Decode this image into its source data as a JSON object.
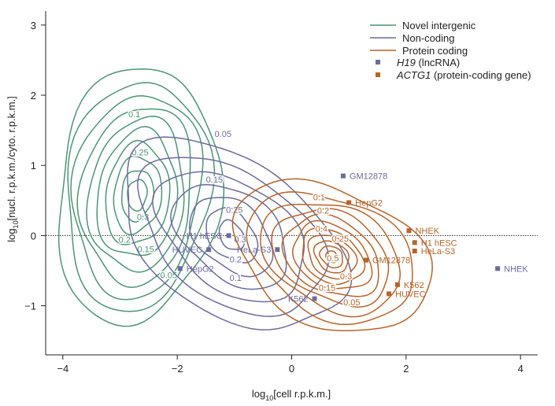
{
  "chart_data": {
    "type": "contour",
    "xlabel": {
      "prefix": "log",
      "sub": "10",
      "rest": "[cell r.p.k.m.]"
    },
    "ylabel": {
      "prefix": "log",
      "sub": "10",
      "rest": "[nucl. r.p.k.m./cyto. r.p.k.m.]"
    },
    "xlim": [
      -4.3,
      4.3
    ],
    "ylim": [
      -1.7,
      3.2
    ],
    "xticks": [
      -4,
      -2,
      0,
      2,
      4
    ],
    "xtick_labels": [
      "−4",
      "−2",
      "0",
      "2",
      "4"
    ],
    "yticks": [
      -1,
      0,
      1,
      2,
      3
    ],
    "ytick_labels": [
      "−1",
      "0",
      "1",
      "2",
      "3"
    ],
    "reference_line_y": 0,
    "colors": {
      "novel": "#4d9474",
      "noncoding": "#6b6b9c",
      "protein": "#b5642c"
    },
    "legend": {
      "position": "top-right",
      "lines": [
        {
          "label": "Novel intergenic",
          "color": "#4d9474"
        },
        {
          "label": "Non-coding",
          "color": "#6b6b9c"
        },
        {
          "label": "Protein coding",
          "color": "#b5642c"
        }
      ],
      "markers": [
        {
          "italic": "H19",
          "rest": " (lncRNA)",
          "color": "#6b6b9c"
        },
        {
          "italic": "ACTG1",
          "rest": " (protein-coding gene)",
          "color": "#b5642c"
        }
      ]
    },
    "series": [
      {
        "name": "Novel intergenic",
        "color": "#4d9474",
        "center": [
          -2.7,
          0.58
        ],
        "rx": [
          0.17,
          0.28,
          0.42,
          0.56,
          0.7,
          0.84,
          0.98,
          1.12,
          1.26,
          1.42
        ],
        "ry": [
          0.22,
          0.36,
          0.54,
          0.72,
          0.9,
          1.08,
          1.26,
          1.44,
          1.62,
          1.82
        ],
        "skew": 0.15,
        "labels": [
          {
            "text": "0.1",
            "x": -2.75,
            "y": 1.73
          },
          {
            "text": "0.25",
            "x": -2.65,
            "y": 1.19
          },
          {
            "text": "0.3",
            "x": -2.6,
            "y": 0.27
          },
          {
            "text": "0.2",
            "x": -2.92,
            "y": -0.06
          },
          {
            "text": "0.15",
            "x": -2.55,
            "y": -0.19
          },
          {
            "text": "0.05",
            "x": -2.15,
            "y": -0.56
          }
        ]
      },
      {
        "name": "Non-coding",
        "color": "#6b6b9c",
        "center": [
          -1.05,
          0.0
        ],
        "rx": [
          0.22,
          0.45,
          0.72,
          1.0,
          1.3,
          1.62,
          1.95
        ],
        "ry": [
          0.2,
          0.36,
          0.52,
          0.68,
          0.84,
          1.02,
          1.22
        ],
        "skew": -0.3,
        "labels": [
          {
            "text": "0.05",
            "x": -1.2,
            "y": 1.45
          },
          {
            "text": "0.15",
            "x": -1.35,
            "y": 0.8
          },
          {
            "text": "0.25",
            "x": -1.0,
            "y": 0.37
          },
          {
            "text": "0.3",
            "x": -0.9,
            "y": -0.05
          },
          {
            "text": "0.2",
            "x": -0.98,
            "y": -0.34
          },
          {
            "text": "0.1",
            "x": -0.98,
            "y": -0.6
          }
        ]
      },
      {
        "name": "Protein coding",
        "color": "#b5642c",
        "center": [
          0.7,
          -0.3
        ],
        "rx": [
          0.1,
          0.2,
          0.3,
          0.42,
          0.54,
          0.68,
          0.84,
          1.02,
          1.22,
          1.45,
          1.72
        ],
        "ry": [
          0.08,
          0.15,
          0.22,
          0.3,
          0.38,
          0.46,
          0.55,
          0.65,
          0.76,
          0.88,
          1.02
        ],
        "skew": -0.2,
        "labels": [
          {
            "text": "0.1",
            "x": 0.48,
            "y": 0.55
          },
          {
            "text": "0.2",
            "x": 0.55,
            "y": 0.36
          },
          {
            "text": "0.4",
            "x": 0.52,
            "y": 0.1
          },
          {
            "text": "0.25",
            "x": 0.85,
            "y": -0.04
          },
          {
            "text": "0.5",
            "x": 0.72,
            "y": -0.32
          },
          {
            "text": "0.3",
            "x": 0.95,
            "y": -0.58
          },
          {
            "text": "0.15",
            "x": 0.62,
            "y": -0.74
          },
          {
            "text": "0.05",
            "x": 1.05,
            "y": -0.95
          }
        ]
      }
    ],
    "points": [
      {
        "series": "H19",
        "label": "GM12878",
        "x": 0.9,
        "y": 0.85,
        "color": "#6b6b9c",
        "anchor": "start"
      },
      {
        "series": "H19",
        "label": "H1 hESC",
        "x": -1.1,
        "y": 0.0,
        "color": "#6b6b9c",
        "anchor": "end"
      },
      {
        "series": "H19",
        "label": "HUVEC",
        "x": -1.45,
        "y": -0.2,
        "color": "#6b6b9c",
        "anchor": "end"
      },
      {
        "series": "H19",
        "label": "HeLa-S3",
        "x": -0.25,
        "y": -0.2,
        "color": "#6b6b9c",
        "anchor": "end"
      },
      {
        "series": "H19",
        "label": "HepG2",
        "x": -1.95,
        "y": -0.47,
        "color": "#6b6b9c",
        "anchor": "start"
      },
      {
        "series": "H19",
        "label": "K562",
        "x": 0.4,
        "y": -0.9,
        "color": "#6b6b9c",
        "anchor": "end"
      },
      {
        "series": "H19",
        "label": "NHEK",
        "x": 3.6,
        "y": -0.47,
        "color": "#6b6b9c",
        "anchor": "start"
      },
      {
        "series": "ACTG1",
        "label": "HepG2",
        "x": 1.0,
        "y": 0.47,
        "color": "#b5642c",
        "anchor": "start"
      },
      {
        "series": "ACTG1",
        "label": "NHEK",
        "x": 2.05,
        "y": 0.07,
        "color": "#b5642c",
        "anchor": "start"
      },
      {
        "series": "ACTG1",
        "label": "H1 hESC",
        "x": 2.15,
        "y": -0.1,
        "color": "#b5642c",
        "anchor": "start"
      },
      {
        "series": "ACTG1",
        "label": "HeLa-S3",
        "x": 2.15,
        "y": -0.22,
        "color": "#b5642c",
        "anchor": "start"
      },
      {
        "series": "ACTG1",
        "label": "GM12878",
        "x": 1.3,
        "y": -0.35,
        "color": "#b5642c",
        "anchor": "start"
      },
      {
        "series": "ACTG1",
        "label": "K562",
        "x": 1.85,
        "y": -0.7,
        "color": "#b5642c",
        "anchor": "start"
      },
      {
        "series": "ACTG1",
        "label": "HUVEC",
        "x": 1.7,
        "y": -0.83,
        "color": "#b5642c",
        "anchor": "start"
      }
    ]
  }
}
